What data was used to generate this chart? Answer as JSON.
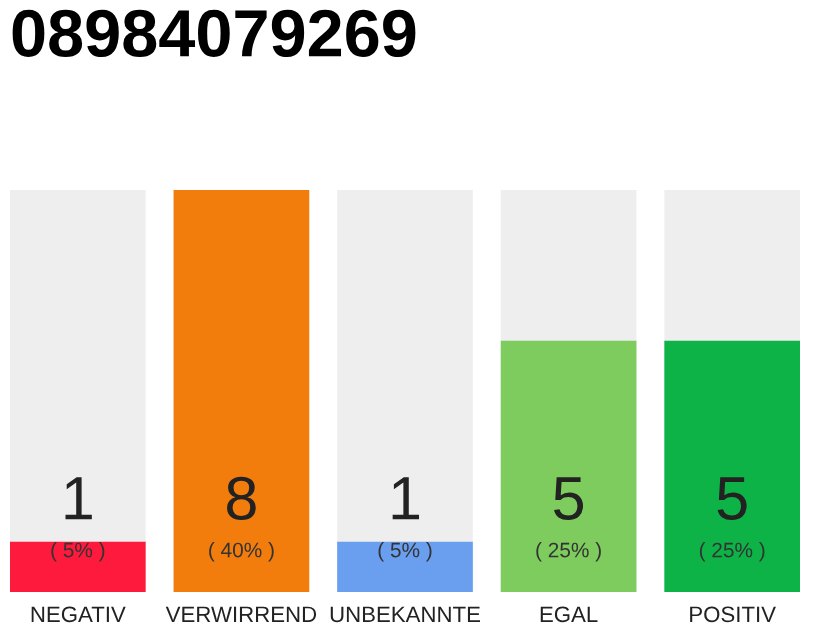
{
  "chart_data": {
    "type": "bar",
    "title": "08984079269",
    "categories": [
      "NEGATIV",
      "VERWIRREND",
      "UNBEKANNTE",
      "EGAL",
      "POSITIV"
    ],
    "values": [
      1,
      8,
      1,
      5,
      5
    ],
    "colors": [
      "#fe1a3c",
      "#f27c0c",
      "#6a9ff0",
      "#7ecb5e",
      "#0db346"
    ],
    "ylim": [
      0,
      8
    ],
    "data_labels": true,
    "annotations": [
      "( 5% )",
      "( 40% )",
      "( 5% )",
      "( 25% )",
      "( 25% )"
    ],
    "grid": false,
    "legend": false
  }
}
